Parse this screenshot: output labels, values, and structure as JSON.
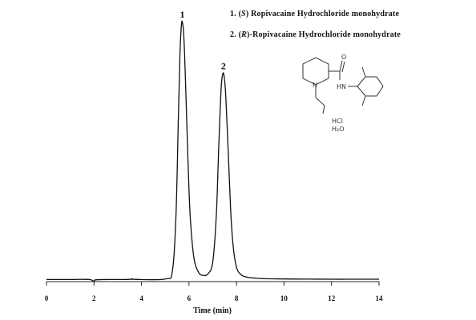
{
  "chart_data": {
    "type": "line",
    "xlabel": "Time (min)",
    "xlim": [
      0,
      14
    ],
    "x_ticks": [
      0,
      2,
      4,
      6,
      8,
      10,
      12,
      14
    ],
    "ylabel": "",
    "grid": false,
    "series": [
      {
        "x": [
          0.0,
          1.0,
          1.8,
          2.0,
          2.1,
          3.0,
          3.5,
          3.6,
          3.7,
          5.0,
          5.3,
          5.45,
          5.55,
          5.62,
          5.68,
          5.72,
          5.78,
          5.85,
          5.95,
          6.05,
          6.2,
          6.4,
          6.6,
          6.8,
          7.0,
          7.15,
          7.25,
          7.35,
          7.42,
          7.48,
          7.55,
          7.65,
          7.75,
          7.85,
          8.0,
          8.2,
          8.5,
          9.0,
          10.0,
          11.0,
          12.0,
          13.0,
          14.0
        ],
        "y": [
          0.2,
          0.2,
          0.2,
          -0.6,
          0.1,
          0.2,
          0.25,
          0.5,
          0.25,
          0.4,
          3.5,
          25,
          62,
          88,
          99,
          100,
          95,
          78,
          48,
          25,
          9,
          3,
          1.8,
          2.4,
          7,
          25,
          51,
          74,
          80,
          79,
          71,
          50,
          28,
          14,
          5,
          2,
          1,
          0.6,
          0.4,
          0.35,
          0.3,
          0.3,
          0.3
        ]
      }
    ],
    "peaks": [
      {
        "label": "1",
        "x": 5.72
      },
      {
        "label": "2",
        "x": 7.45
      }
    ],
    "legend": [
      {
        "num": "1. ",
        "open": "(",
        "config": "S",
        "close": ")",
        "rest": " Ropivacaine  Hydrochloride  monohydrate"
      },
      {
        "num": "2. ",
        "open": "(",
        "config": "R",
        "close": ")",
        "rest": "-Ropivacaine  Hydrochloride  monohydrate"
      }
    ],
    "structure_labels": {
      "carbonyl_o": "O",
      "amide_nh": "HN",
      "ring_n": "N",
      "salt": "HCl",
      "water": "H₂O"
    }
  }
}
